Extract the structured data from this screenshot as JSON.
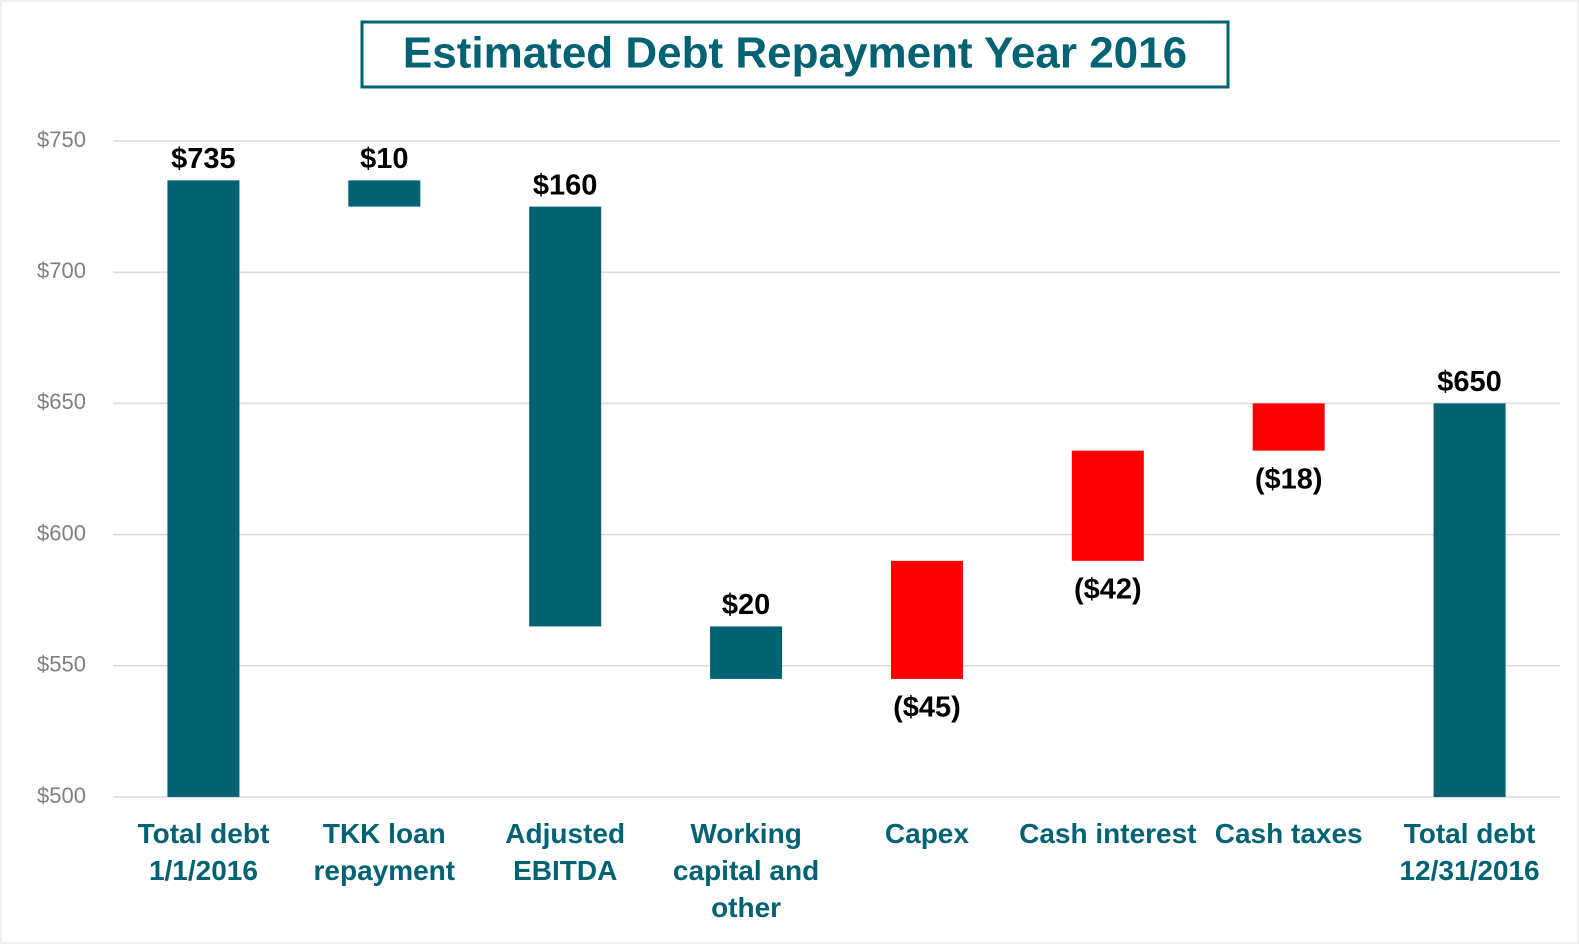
{
  "chart_data": {
    "type": "waterfall",
    "title": "Estimated Debt Repayment Year 2016",
    "categories": [
      "Total debt 1/1/2016",
      "TKK loan repayment",
      "Adjusted EBITDA",
      "Working capital and other",
      "Capex",
      "Cash interest",
      "Cash taxes",
      "Total debt 12/31/2016"
    ],
    "values": [
      735,
      10,
      160,
      20,
      -45,
      -42,
      -18,
      650
    ],
    "value_labels": [
      "$735",
      "$10",
      "$160",
      "$20",
      "($45)",
      "($42)",
      "($18)",
      "$650"
    ],
    "total": [
      true,
      false,
      false,
      false,
      false,
      false,
      false,
      true
    ],
    "color": "#006272",
    "negative_color": "#ff0000",
    "ylim": [
      500,
      750
    ],
    "yticks": [
      {
        "value": 500,
        "label": "$500"
      },
      {
        "value": 550,
        "label": "$550"
      },
      {
        "value": 600,
        "label": "$600"
      },
      {
        "value": 650,
        "label": "$650"
      },
      {
        "value": 700,
        "label": "$700"
      },
      {
        "value": 750,
        "label": "$750"
      }
    ],
    "grid": true
  }
}
